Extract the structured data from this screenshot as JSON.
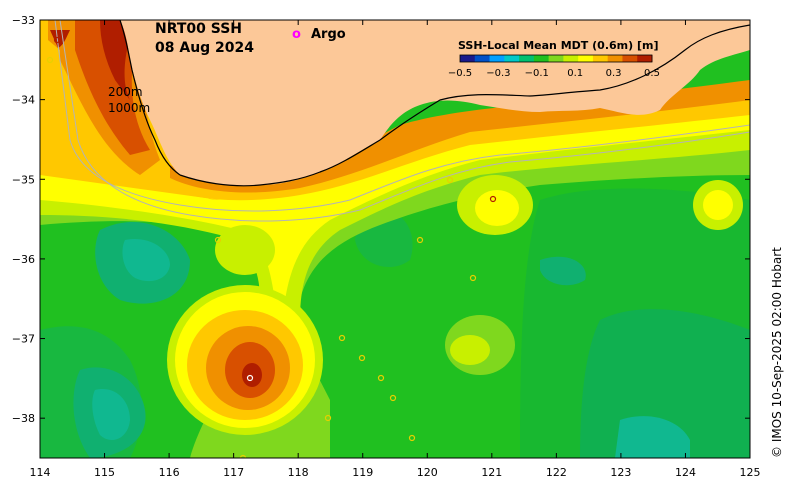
{
  "title_lines": [
    "NRT00 SSH",
    "08 Aug 2024"
  ],
  "argo_legend": {
    "symbol": "o",
    "label": "Argo",
    "color": "#ff00ff"
  },
  "contour_labels": [
    "200m",
    "1000m"
  ],
  "colorbar": {
    "title": "SSH-Local Mean MDT (0.6m) [m]",
    "ticks": [
      "−0.5",
      "−0.3",
      "−0.1",
      "0.1",
      "0.3",
      "0.5"
    ],
    "colors": [
      "#1a1a8c",
      "#0050c8",
      "#00a0ff",
      "#00c8c8",
      "#00c070",
      "#20c020",
      "#7fd81e",
      "#c8f000",
      "#ffff00",
      "#ffc800",
      "#f09000",
      "#d85000",
      "#b01e00"
    ]
  },
  "credit": "© IMOS 10-Sep-2025 02:00 Hobart",
  "land_color": "#fcc898",
  "map": {
    "lon_range": [
      114,
      125
    ],
    "lat_range": [
      -38.5,
      -33
    ],
    "lon_ticks": [
      "114",
      "115",
      "116",
      "117",
      "118",
      "119",
      "120",
      "121",
      "122",
      "123",
      "124",
      "125"
    ],
    "lat_ticks": [
      "−33",
      "−34",
      "−35",
      "−36",
      "−37",
      "−38"
    ]
  }
}
